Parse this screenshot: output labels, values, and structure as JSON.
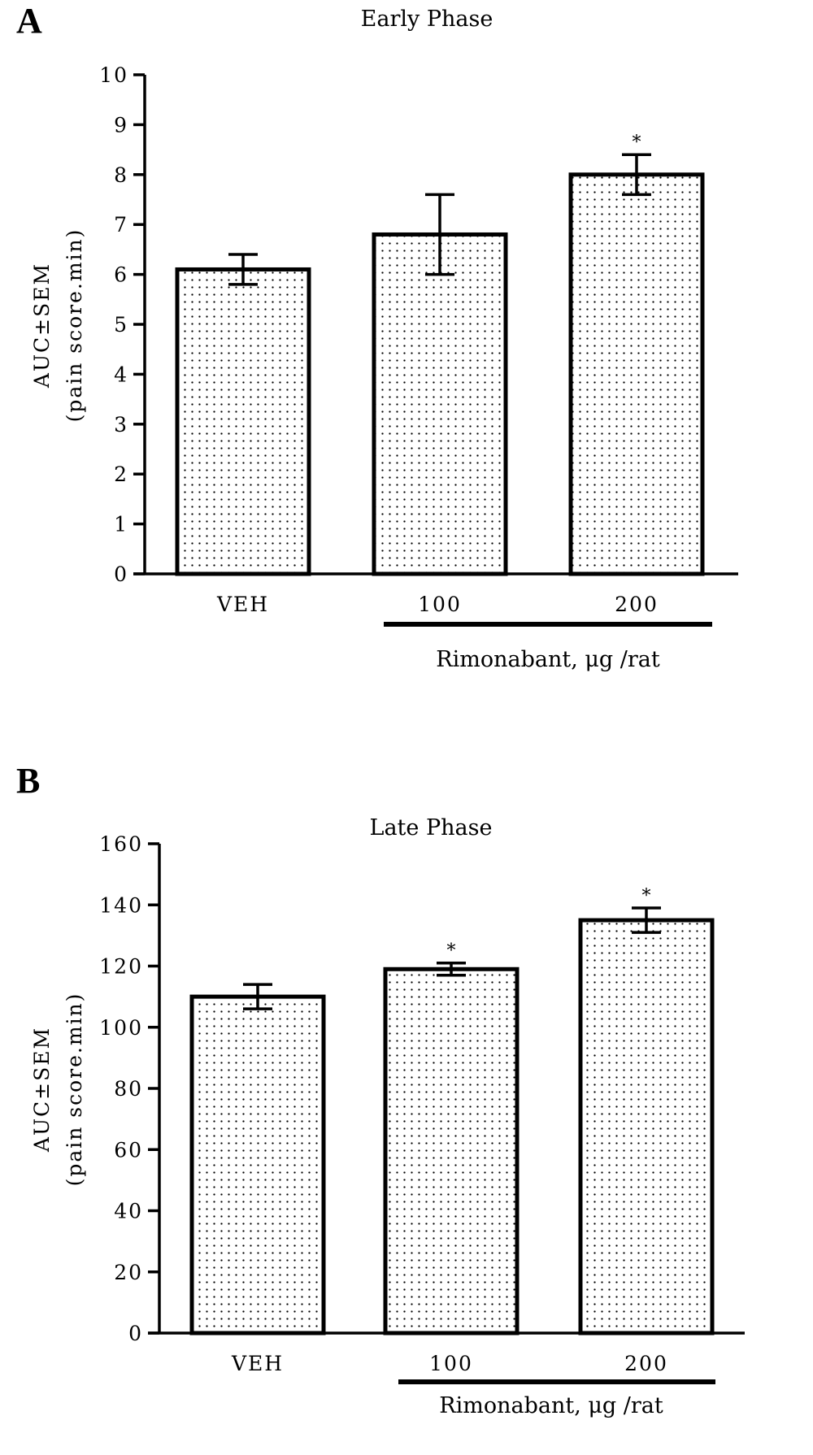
{
  "chart_data": [
    {
      "panel": "A",
      "type": "bar",
      "title": "Early Phase",
      "categories": [
        "VEH",
        "100",
        "200"
      ],
      "values": [
        6.1,
        6.8,
        8.0
      ],
      "errors": [
        0.3,
        0.8,
        0.4
      ],
      "significance": [
        "",
        "",
        "*"
      ],
      "ylabel_line1": "AUC±SEM",
      "ylabel_line2": "(pain score.min)",
      "ylim": [
        0,
        10
      ],
      "yticks": [
        "0",
        "1",
        "2",
        "3",
        "4",
        "5",
        "6",
        "7",
        "8",
        "9",
        "10"
      ],
      "group_label": "Rimonabant, μg /rat",
      "grid": false,
      "bar_pattern": "dotted"
    },
    {
      "panel": "B",
      "type": "bar",
      "title": "Late Phase",
      "categories": [
        "VEH",
        "100",
        "200"
      ],
      "values": [
        110,
        119,
        135
      ],
      "errors": [
        4,
        2,
        4
      ],
      "significance": [
        "",
        "*",
        "*"
      ],
      "ylabel_line1": "AUC±SEM",
      "ylabel_line2": "(pain score.min)",
      "ylim": [
        0,
        160
      ],
      "yticks": [
        "0",
        "20",
        "40",
        "60",
        "80",
        "100",
        "120",
        "140",
        "160"
      ],
      "group_label": "Rimonabant, μg /rat",
      "grid": false,
      "bar_pattern": "dotted"
    }
  ]
}
